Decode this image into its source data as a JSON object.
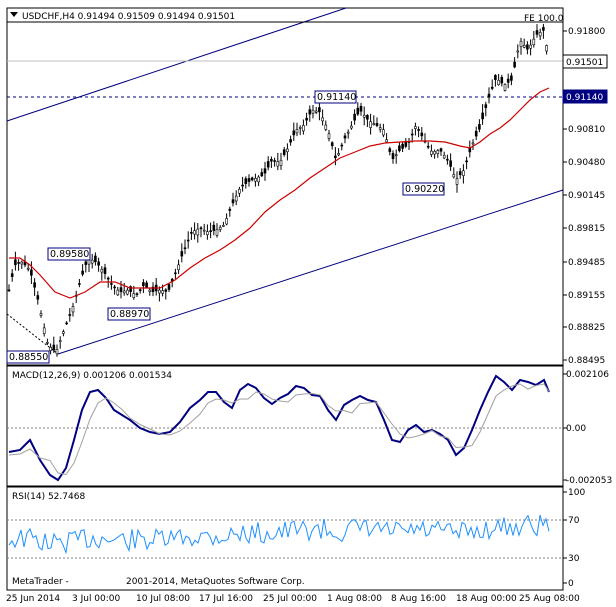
{
  "main_panel": {
    "title": "USDCHF,H4  0.91494 0.91509 0.91494 0.91501",
    "fe_label": "FE 100.0",
    "price_labels": [
      "0.91800",
      "0.91140",
      "0.90810",
      "0.90480",
      "0.90145",
      "0.89815",
      "0.89485",
      "0.89155",
      "0.88825",
      "0.88495"
    ],
    "current_price": "0.91501",
    "hline_price": "0.91140",
    "annotations": [
      "0.91140",
      "0.90220",
      "0.89580",
      "0.88970",
      "0.88550"
    ]
  },
  "macd_panel": {
    "title": "MACD(12,26,9) 0.001206 0.001534",
    "axis_labels": [
      "0.002106",
      "0.00",
      "-0.002053"
    ]
  },
  "rsi_panel": {
    "title": "RSI(14) 52.7468",
    "axis_labels": [
      "100",
      "70",
      "30",
      "0"
    ]
  },
  "footer": {
    "copyright": "MetaTrader -                    2001-2014, MetaQuotes Software Corp."
  },
  "time_axis": [
    "25 Jun 2014",
    "3 Jul 00:00",
    "10 Jul 08:00",
    "17 Jul 16:00",
    "25 Jul 00:00",
    "1 Aug 08:00",
    "8 Aug 16:00",
    "18 Aug 00:00",
    "25 Aug 08:00"
  ],
  "colors": {
    "candle": "#000000",
    "ma": "#cc0000",
    "channel": "#000080",
    "macd": "#000080",
    "signal": "#c0c0c0",
    "rsi": "#1e90ff",
    "grid_dash": "#808080"
  }
}
